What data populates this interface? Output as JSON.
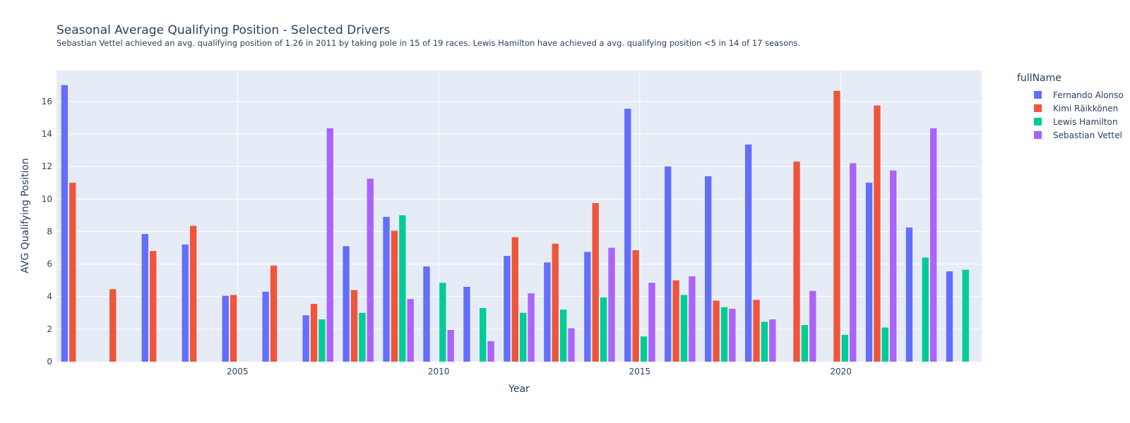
{
  "title": "Seasonal Average Qualifying Position - Selected Drivers",
  "subtitle": "Sebastian Vettel achieved an avg. qualifying position of 1.26 in 2011 by taking pole in 15 of 19 races. Lewis Hamilton have achieved a avg. qualifying position <5 in 14 of 17 seasons.",
  "chart_data": {
    "type": "bar",
    "title": "Seasonal Average Qualifying Position - Selected Drivers",
    "xlabel": "Year",
    "ylabel": "AVG Qualifying Position",
    "legend_title": "fullName",
    "legend_position": "right",
    "grid": true,
    "x": [
      2001,
      2002,
      2003,
      2004,
      2005,
      2006,
      2007,
      2008,
      2009,
      2010,
      2011,
      2012,
      2013,
      2014,
      2015,
      2016,
      2017,
      2018,
      2019,
      2020,
      2021,
      2022,
      2023
    ],
    "xlim": [
      2000.5,
      2023.5
    ],
    "ylim": [
      0,
      17.9
    ],
    "x_ticks": [
      2005,
      2010,
      2015,
      2020
    ],
    "y_ticks": [
      0,
      2,
      4,
      6,
      8,
      10,
      12,
      14,
      16
    ],
    "series": [
      {
        "name": "Fernando Alonso",
        "color": "#636efa",
        "values": [
          17.0,
          null,
          7.85,
          7.2,
          4.05,
          4.3,
          2.85,
          7.1,
          8.9,
          5.85,
          4.6,
          6.5,
          6.1,
          6.75,
          15.55,
          12.0,
          11.4,
          13.35,
          null,
          null,
          11.0,
          8.25,
          5.55
        ]
      },
      {
        "name": "Kimi Räikkönen",
        "color": "#ef553b",
        "values": [
          11.0,
          4.45,
          6.8,
          8.35,
          4.1,
          5.9,
          3.55,
          4.4,
          8.05,
          null,
          null,
          7.65,
          7.25,
          9.75,
          6.85,
          5.0,
          3.75,
          3.8,
          12.3,
          16.65,
          15.75,
          null,
          null
        ]
      },
      {
        "name": "Lewis Hamilton",
        "color": "#00cc96",
        "values": [
          null,
          null,
          null,
          null,
          null,
          null,
          2.6,
          3.0,
          9.0,
          4.85,
          3.3,
          3.0,
          3.2,
          3.95,
          1.55,
          4.1,
          3.35,
          2.45,
          2.25,
          1.65,
          2.1,
          6.4,
          5.65
        ]
      },
      {
        "name": "Sebastian Vettel",
        "color": "#ab63fa",
        "values": [
          null,
          null,
          null,
          null,
          null,
          null,
          14.35,
          11.25,
          3.85,
          1.95,
          1.26,
          4.2,
          2.05,
          7.0,
          4.85,
          5.25,
          3.25,
          2.6,
          4.35,
          12.2,
          11.75,
          14.35,
          null
        ]
      }
    ]
  }
}
